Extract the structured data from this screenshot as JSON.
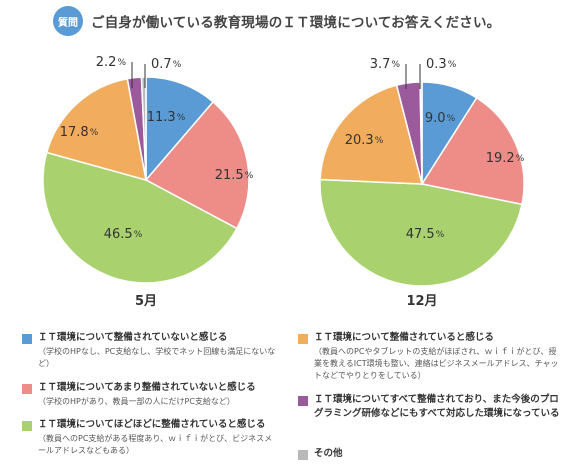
{
  "header": {
    "badge": "質問",
    "title": "ご自身が働いている教育現場のＩＴ環境についてお答えください。"
  },
  "colors": {
    "blue": "#5a9bd5",
    "red": "#ee8c88",
    "green": "#a9d26e",
    "orange": "#f1ad5d",
    "purple": "#9a5a9c",
    "gray": "#b9b9b9"
  },
  "chart_data": [
    {
      "type": "pie",
      "title": "5月",
      "slices": [
        {
          "label": "ＩＴ環境について整備されていないと感じる",
          "value": 11.3,
          "display": "11.3",
          "color": "#5a9bd5"
        },
        {
          "label": "ＩＴ環境についてあまり整備されていないと感じる",
          "value": 21.5,
          "display": "21.5",
          "color": "#ee8c88"
        },
        {
          "label": "ＩＴ環境についてほどほどに整備されていると感じる",
          "value": 46.5,
          "display": "46.5",
          "color": "#a9d26e"
        },
        {
          "label": "ＩＴ環境について整備されていると感じる",
          "value": 17.8,
          "display": "17.8",
          "color": "#f1ad5d"
        },
        {
          "label": "ＩＴ環境についてすべて整備されており、また今後のプログラミング研修などにもすべて対応した環境になっている",
          "value": 2.2,
          "display": "2.2",
          "color": "#9a5a9c"
        },
        {
          "label": "その他",
          "value": 0.7,
          "display": "0.7",
          "color": "#b9b9b9"
        }
      ],
      "unit": "%"
    },
    {
      "type": "pie",
      "title": "12月",
      "slices": [
        {
          "label": "ＩＴ環境について整備されていないと感じる",
          "value": 9.0,
          "display": "9.0",
          "color": "#5a9bd5"
        },
        {
          "label": "ＩＴ環境についてあまり整備されていないと感じる",
          "value": 19.2,
          "display": "19.2",
          "color": "#ee8c88"
        },
        {
          "label": "ＩＴ環境についてほどほどに整備されていると感じる",
          "value": 47.5,
          "display": "47.5",
          "color": "#a9d26e"
        },
        {
          "label": "ＩＴ環境について整備されていると感じる",
          "value": 20.3,
          "display": "20.3",
          "color": "#f1ad5d"
        },
        {
          "label": "ＩＴ環境についてすべて整備されており、また今後のプログラミング研修などにもすべて対応した環境になっている",
          "value": 3.7,
          "display": "3.7",
          "color": "#9a5a9c"
        },
        {
          "label": "その他",
          "value": 0.3,
          "display": "0.3",
          "color": "#b9b9b9"
        }
      ],
      "unit": "%"
    }
  ],
  "legend": [
    {
      "color": "#5a9bd5",
      "main": "ＩＴ環境について整備されていないと感じる",
      "sub": "（学校のHPなし、PC支給なし、学校でネット回線も満足にないなど）"
    },
    {
      "color": "#ee8c88",
      "main": "ＩＴ環境についてあまり整備されていないと感じる",
      "sub": "（学校のHPがあり、教員一部の人にだけPC支給など）"
    },
    {
      "color": "#a9d26e",
      "main": "ＩＴ環境についてほどほどに整備されていると感じる",
      "sub": "（教員へのPC支給がある程度あり、ｗｉｆｉがとび、ビジネスメールアドレスなどもある）"
    },
    {
      "color": "#f1ad5d",
      "main": "ＩＴ環境について整備されていると感じる",
      "sub": "（教員へのPCやタブレットの支給がほぼされ、ｗｉｆｉがとび、授業を教えるICT環境も整い、連絡はビジネスメールアドレス、チャットなどでやりとりをしている）"
    },
    {
      "color": "#9a5a9c",
      "main": "ＩＴ環境についてすべて整備されており、また今後のプログラミング研修などにもすべて対応した環境になっている",
      "sub": ""
    },
    {
      "color": "#b9b9b9",
      "main": "その他",
      "sub": ""
    }
  ]
}
